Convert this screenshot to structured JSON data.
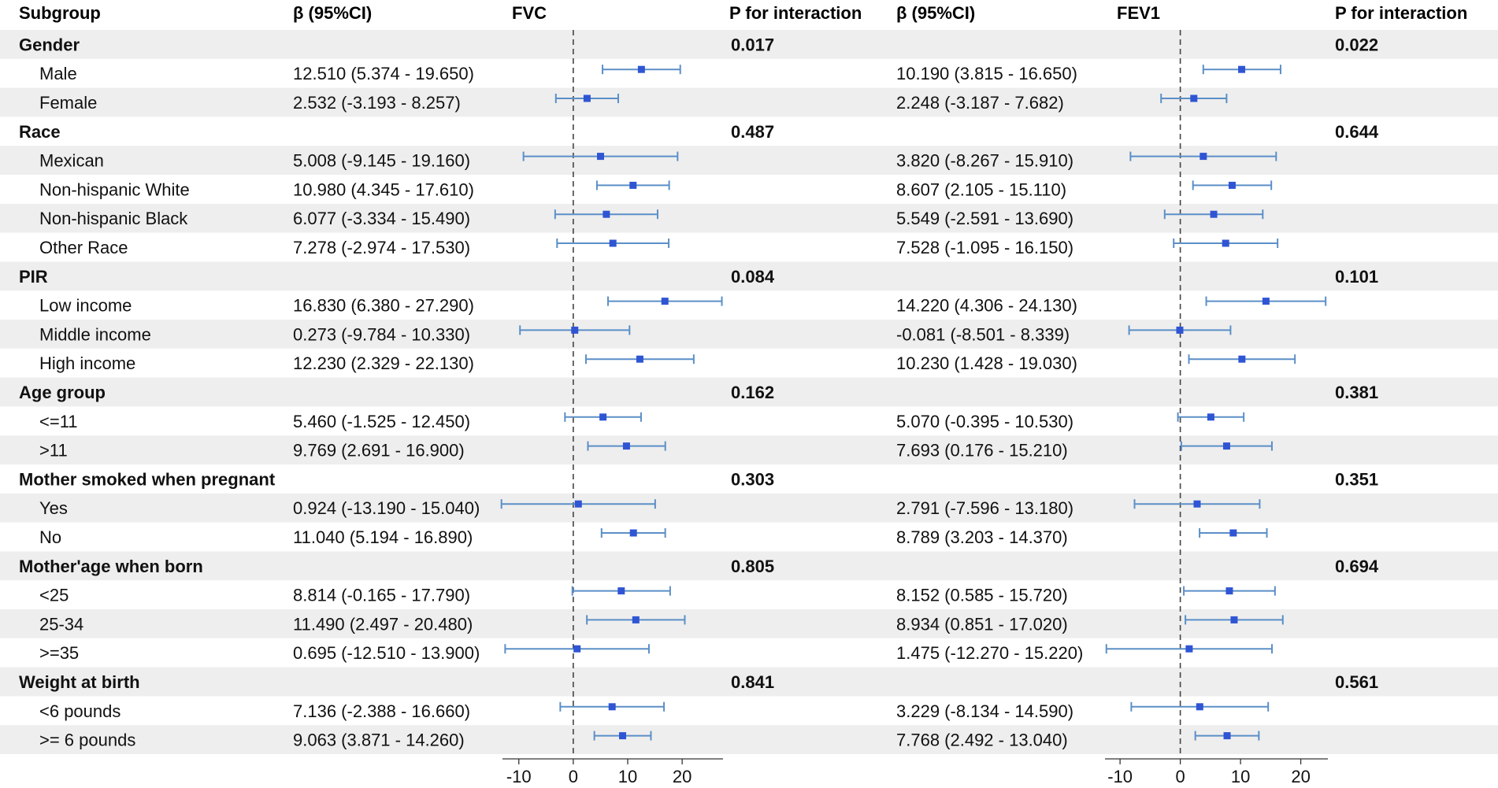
{
  "chart_data": {
    "type": "forest",
    "headers": {
      "subgroup": "Subgroup",
      "beta_fvc": "β (95%CI)",
      "fvc": "FVC",
      "p_fvc": "P for interaction",
      "beta_fev1": "β (95%CI)",
      "fev1": "FEV1",
      "p_fev1": "P for interaction"
    },
    "panels": [
      {
        "name": "FVC",
        "xlim": [
          -13,
          27.5
        ],
        "ticks": [
          -10,
          0,
          10,
          20
        ],
        "tick_labels": [
          "-10",
          "0",
          "10",
          "20"
        ],
        "reference_line": 0
      },
      {
        "name": "FEV1",
        "xlim": [
          -12.5,
          24.5
        ],
        "ticks": [
          -10,
          0,
          10,
          20
        ],
        "tick_labels": [
          "-10",
          "0",
          "10",
          "20"
        ],
        "reference_line": 0
      }
    ],
    "rows": [
      {
        "label": "Gender",
        "group": true,
        "p_fvc": "0.017",
        "p_fev1": "0.022"
      },
      {
        "label": "Male",
        "group": false,
        "fvc": {
          "text": "12.510 (5.374 - 19.650)",
          "est": 12.51,
          "lo": 5.374,
          "hi": 19.65
        },
        "fev1": {
          "text": "10.190 (3.815 - 16.650)",
          "est": 10.19,
          "lo": 3.815,
          "hi": 16.65
        }
      },
      {
        "label": "Female",
        "group": false,
        "fvc": {
          "text": "2.532 (-3.193 - 8.257)",
          "est": 2.532,
          "lo": -3.193,
          "hi": 8.257
        },
        "fev1": {
          "text": "2.248 (-3.187 - 7.682)",
          "est": 2.248,
          "lo": -3.187,
          "hi": 7.682
        }
      },
      {
        "label": "Race",
        "group": true,
        "p_fvc": "0.487",
        "p_fev1": "0.644"
      },
      {
        "label": "Mexican",
        "group": false,
        "fvc": {
          "text": "5.008 (-9.145 - 19.160)",
          "est": 5.008,
          "lo": -9.145,
          "hi": 19.16
        },
        "fev1": {
          "text": "3.820 (-8.267 - 15.910)",
          "est": 3.82,
          "lo": -8.267,
          "hi": 15.91
        }
      },
      {
        "label": "Non-hispanic White",
        "group": false,
        "fvc": {
          "text": "10.980 (4.345 - 17.610)",
          "est": 10.98,
          "lo": 4.345,
          "hi": 17.61
        },
        "fev1": {
          "text": "8.607 (2.105 - 15.110)",
          "est": 8.607,
          "lo": 2.105,
          "hi": 15.11
        }
      },
      {
        "label": "Non-hispanic Black",
        "group": false,
        "fvc": {
          "text": "6.077 (-3.334 - 15.490)",
          "est": 6.077,
          "lo": -3.334,
          "hi": 15.49
        },
        "fev1": {
          "text": "5.549 (-2.591 - 13.690)",
          "est": 5.549,
          "lo": -2.591,
          "hi": 13.69
        }
      },
      {
        "label": "Other Race",
        "group": false,
        "fvc": {
          "text": "7.278 (-2.974 - 17.530)",
          "est": 7.278,
          "lo": -2.974,
          "hi": 17.53
        },
        "fev1": {
          "text": "7.528 (-1.095 - 16.150)",
          "est": 7.528,
          "lo": -1.095,
          "hi": 16.15
        }
      },
      {
        "label": "PIR",
        "group": true,
        "p_fvc": "0.084",
        "p_fev1": "0.101"
      },
      {
        "label": "Low income",
        "group": false,
        "fvc": {
          "text": "16.830 (6.380 - 27.290)",
          "est": 16.83,
          "lo": 6.38,
          "hi": 27.29
        },
        "fev1": {
          "text": "14.220 (4.306 - 24.130)",
          "est": 14.22,
          "lo": 4.306,
          "hi": 24.13
        }
      },
      {
        "label": "Middle income",
        "group": false,
        "fvc": {
          "text": "0.273 (-9.784 - 10.330)",
          "est": 0.273,
          "lo": -9.784,
          "hi": 10.33
        },
        "fev1": {
          "text": "-0.081 (-8.501 - 8.339)",
          "est": -0.081,
          "lo": -8.501,
          "hi": 8.339
        }
      },
      {
        "label": "High income",
        "group": false,
        "fvc": {
          "text": "12.230 (2.329 - 22.130)",
          "est": 12.23,
          "lo": 2.329,
          "hi": 22.13
        },
        "fev1": {
          "text": "10.230 (1.428 - 19.030)",
          "est": 10.23,
          "lo": 1.428,
          "hi": 19.03
        }
      },
      {
        "label": "Age group",
        "group": true,
        "p_fvc": "0.162",
        "p_fev1": "0.381"
      },
      {
        "label": "<=11",
        "group": false,
        "fvc": {
          "text": "5.460 (-1.525 - 12.450)",
          "est": 5.46,
          "lo": -1.525,
          "hi": 12.45
        },
        "fev1": {
          "text": "5.070 (-0.395 - 10.530)",
          "est": 5.07,
          "lo": -0.395,
          "hi": 10.53
        }
      },
      {
        "label": ">11",
        "group": false,
        "fvc": {
          "text": "9.769 (2.691 - 16.900)",
          "est": 9.769,
          "lo": 2.691,
          "hi": 16.9
        },
        "fev1": {
          "text": "7.693 (0.176 - 15.210)",
          "est": 7.693,
          "lo": 0.176,
          "hi": 15.21
        }
      },
      {
        "label": "Mother smoked when pregnant",
        "group": true,
        "p_fvc": "0.303",
        "p_fev1": "0.351"
      },
      {
        "label": "Yes",
        "group": false,
        "fvc": {
          "text": "0.924 (-13.190 - 15.040)",
          "est": 0.924,
          "lo": -13.19,
          "hi": 15.04
        },
        "fev1": {
          "text": "2.791 (-7.596 - 13.180)",
          "est": 2.791,
          "lo": -7.596,
          "hi": 13.18
        }
      },
      {
        "label": "No",
        "group": false,
        "fvc": {
          "text": "11.040 (5.194 - 16.890)",
          "est": 11.04,
          "lo": 5.194,
          "hi": 16.89
        },
        "fev1": {
          "text": "8.789 (3.203 - 14.370)",
          "est": 8.789,
          "lo": 3.203,
          "hi": 14.37
        }
      },
      {
        "label": "Mother'age when born",
        "group": true,
        "p_fvc": "0.805",
        "p_fev1": "0.694"
      },
      {
        "label": "<25",
        "group": false,
        "fvc": {
          "text": "8.814 (-0.165 - 17.790)",
          "est": 8.814,
          "lo": -0.165,
          "hi": 17.79
        },
        "fev1": {
          "text": "8.152 (0.585 - 15.720)",
          "est": 8.152,
          "lo": 0.585,
          "hi": 15.72
        }
      },
      {
        "label": "25-34",
        "group": false,
        "fvc": {
          "text": "11.490 (2.497 - 20.480)",
          "est": 11.49,
          "lo": 2.497,
          "hi": 20.48
        },
        "fev1": {
          "text": "8.934 (0.851 - 17.020)",
          "est": 8.934,
          "lo": 0.851,
          "hi": 17.02
        }
      },
      {
        "label": ">=35",
        "group": false,
        "fvc": {
          "text": "0.695 (-12.510 - 13.900)",
          "est": 0.695,
          "lo": -12.51,
          "hi": 13.9
        },
        "fev1": {
          "text": "1.475 (-12.270 - 15.220)",
          "est": 1.475,
          "lo": -12.27,
          "hi": 15.22
        }
      },
      {
        "label": "Weight at birth",
        "group": true,
        "p_fvc": "0.841",
        "p_fev1": "0.561"
      },
      {
        "label": "<6 pounds",
        "group": false,
        "fvc": {
          "text": "7.136 (-2.388 - 16.660)",
          "est": 7.136,
          "lo": -2.388,
          "hi": 16.66
        },
        "fev1": {
          "text": "3.229 (-8.134 - 14.590)",
          "est": 3.229,
          "lo": -8.134,
          "hi": 14.59
        }
      },
      {
        "label": ">= 6 pounds",
        "group": false,
        "fvc": {
          "text": "9.063 (3.871 - 14.260)",
          "est": 9.063,
          "lo": 3.871,
          "hi": 14.26
        },
        "fev1": {
          "text": "7.768 (2.492 - 13.040)",
          "est": 7.768,
          "lo": 2.492,
          "hi": 13.04
        }
      }
    ],
    "colors": {
      "ci_line": "#5b8fc7",
      "point": "#2f55d4",
      "stripe": "#eeeeee",
      "reference_line": "#444444",
      "axis": "#333333",
      "text": "#111111"
    }
  }
}
